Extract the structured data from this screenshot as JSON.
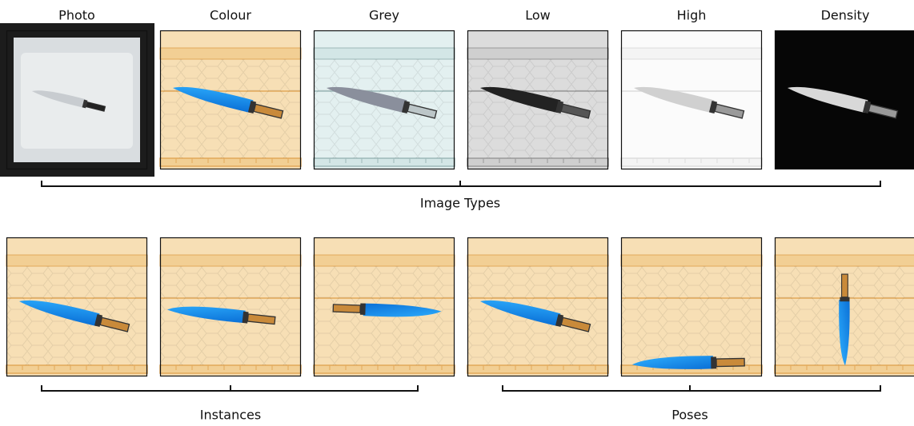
{
  "image_types": {
    "labels": [
      "Photo",
      "Colour",
      "Grey",
      "Low",
      "High",
      "Density"
    ],
    "caption": "Image Types"
  },
  "instances": {
    "caption": "Instances"
  },
  "poses": {
    "caption": "Poses"
  }
}
